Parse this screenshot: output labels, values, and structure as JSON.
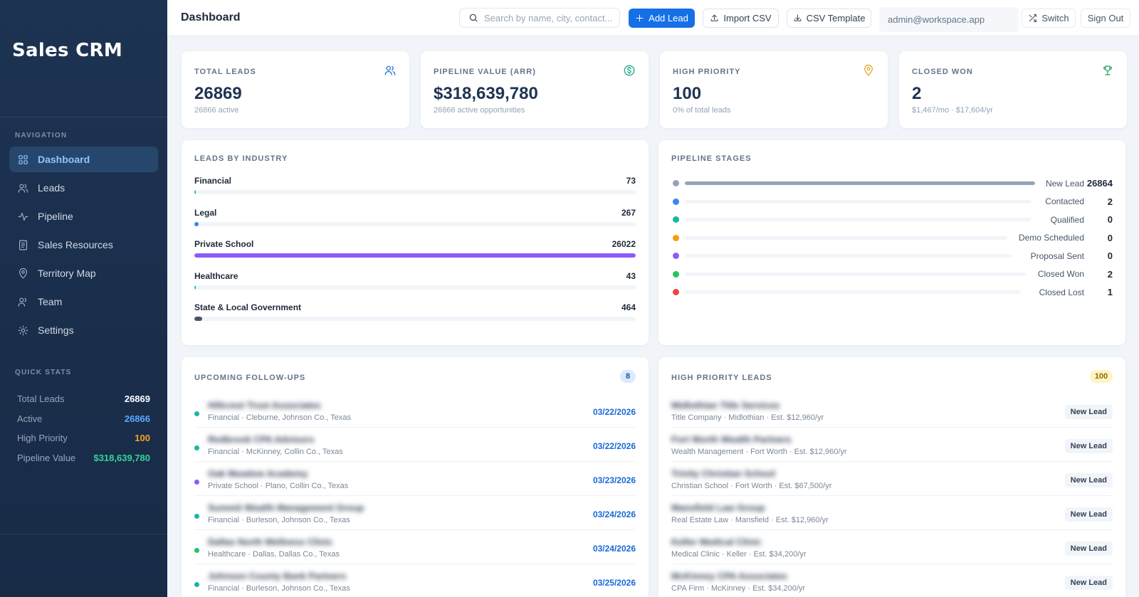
{
  "app": {
    "name": "Sales CRM"
  },
  "sidebar": {
    "nav_label": "NAVIGATION",
    "items": [
      {
        "label": "Dashboard",
        "icon": "grid-icon",
        "active": true
      },
      {
        "label": "Leads",
        "icon": "users-icon"
      },
      {
        "label": "Pipeline",
        "icon": "activity-icon"
      },
      {
        "label": "Sales Resources",
        "icon": "document-icon"
      },
      {
        "label": "Territory Map",
        "icon": "map-pin-icon"
      },
      {
        "label": "Team",
        "icon": "team-icon"
      },
      {
        "label": "Settings",
        "icon": "gear-icon"
      }
    ],
    "quick_label": "QUICK STATS",
    "quick_stats": [
      {
        "label": "Total Leads",
        "value": "26869",
        "color": "#ffffff"
      },
      {
        "label": "Active",
        "value": "26866",
        "color": "#5aa9ff"
      },
      {
        "label": "High Priority",
        "value": "100",
        "color": "#f5a524"
      },
      {
        "label": "Pipeline Value",
        "value": "$318,639,780",
        "color": "#34d399"
      }
    ]
  },
  "header": {
    "title": "Dashboard",
    "search_placeholder": "Search by name, city, contact...",
    "add_lead": "Add Lead",
    "import_csv": "Import CSV",
    "csv_template": "CSV Template",
    "user_email": "admin@workspace.app",
    "switch": "Switch",
    "sign_out": "Sign Out"
  },
  "stats": [
    {
      "label": "TOTAL LEADS",
      "value": "26869",
      "sub": "26866 active",
      "icon": "users-icon",
      "icon_color": "#1769d6"
    },
    {
      "label": "PIPELINE VALUE (ARR)",
      "value": "$318,639,780",
      "sub": "26866 active opportunities",
      "icon": "dollar-circle-icon",
      "icon_color": "#14a38b"
    },
    {
      "label": "HIGH PRIORITY",
      "value": "100",
      "sub": "0% of total leads",
      "icon": "map-pin-icon",
      "icon_color": "#e0a020"
    },
    {
      "label": "CLOSED WON",
      "value": "2",
      "sub": "$1,467/mo · $17,604/yr",
      "icon": "trophy-icon",
      "icon_color": "#22a05a"
    }
  ],
  "industry": {
    "title": "LEADS BY INDUSTRY",
    "max": 26022,
    "items": [
      {
        "name": "Financial",
        "count": 73,
        "color": "#14b8a6"
      },
      {
        "name": "Legal",
        "count": 267,
        "color": "#3b82f6"
      },
      {
        "name": "Private School",
        "count": 26022,
        "color": "#8b5cf6"
      },
      {
        "name": "Healthcare",
        "count": 43,
        "color": "#14b8a6"
      },
      {
        "name": "State & Local Government",
        "count": 464,
        "color": "#475569"
      }
    ]
  },
  "pipeline": {
    "title": "PIPELINE STAGES",
    "max": 26864,
    "stages": [
      {
        "name": "New Lead",
        "count": 26864,
        "color": "#94a3b8"
      },
      {
        "name": "Contacted",
        "count": 2,
        "color": "#3b82f6"
      },
      {
        "name": "Qualified",
        "count": 0,
        "color": "#14b8a6"
      },
      {
        "name": "Demo Scheduled",
        "count": 0,
        "color": "#f59e0b"
      },
      {
        "name": "Proposal Sent",
        "count": 0,
        "color": "#8b5cf6"
      },
      {
        "name": "Closed Won",
        "count": 2,
        "color": "#22c55e"
      },
      {
        "name": "Closed Lost",
        "count": 1,
        "color": "#ef4444"
      }
    ]
  },
  "followups": {
    "title": "UPCOMING FOLLOW-UPS",
    "count": "8",
    "items": [
      {
        "name": "Hillcrest Trust Associates",
        "meta": "Financial · Cleburne, Johnson Co., Texas",
        "date": "03/22/2026",
        "color": "#14b8a6"
      },
      {
        "name": "Redbrook CPA Advisors",
        "meta": "Financial · McKinney, Collin Co., Texas",
        "date": "03/22/2026",
        "color": "#14b8a6"
      },
      {
        "name": "Oak Meadow Academy",
        "meta": "Private School · Plano, Collin Co., Texas",
        "date": "03/23/2026",
        "color": "#8b5cf6"
      },
      {
        "name": "Summit Wealth Management Group",
        "meta": "Financial · Burleson, Johnson Co., Texas",
        "date": "03/24/2026",
        "color": "#14b8a6"
      },
      {
        "name": "Dallas North Wellness Clinic",
        "meta": "Healthcare · Dallas, Dallas Co., Texas",
        "date": "03/24/2026",
        "color": "#22c55e"
      },
      {
        "name": "Johnson County Bank Partners",
        "meta": "Financial · Burleson, Johnson Co., Texas",
        "date": "03/25/2026",
        "color": "#14b8a6"
      }
    ]
  },
  "high_priority": {
    "title": "HIGH PRIORITY LEADS",
    "count": "100",
    "items": [
      {
        "name": "Midlothian Title Services",
        "meta": "Title Company · Midlothian · Est. $12,960/yr",
        "stage": "New Lead"
      },
      {
        "name": "Fort Worth Wealth Partners",
        "meta": "Wealth Management · Fort Worth · Est. $12,960/yr",
        "stage": "New Lead"
      },
      {
        "name": "Trinity Christian School",
        "meta": "Christian School · Fort Worth · Est. $67,500/yr",
        "stage": "New Lead"
      },
      {
        "name": "Mansfield Law Group",
        "meta": "Real Estate Law · Mansfield · Est. $12,960/yr",
        "stage": "New Lead"
      },
      {
        "name": "Keller Medical Clinic",
        "meta": "Medical Clinic · Keller · Est. $34,200/yr",
        "stage": "New Lead"
      },
      {
        "name": "McKinney CPA Associates",
        "meta": "CPA Firm · McKinney · Est. $34,200/yr",
        "stage": "New Lead"
      }
    ]
  }
}
